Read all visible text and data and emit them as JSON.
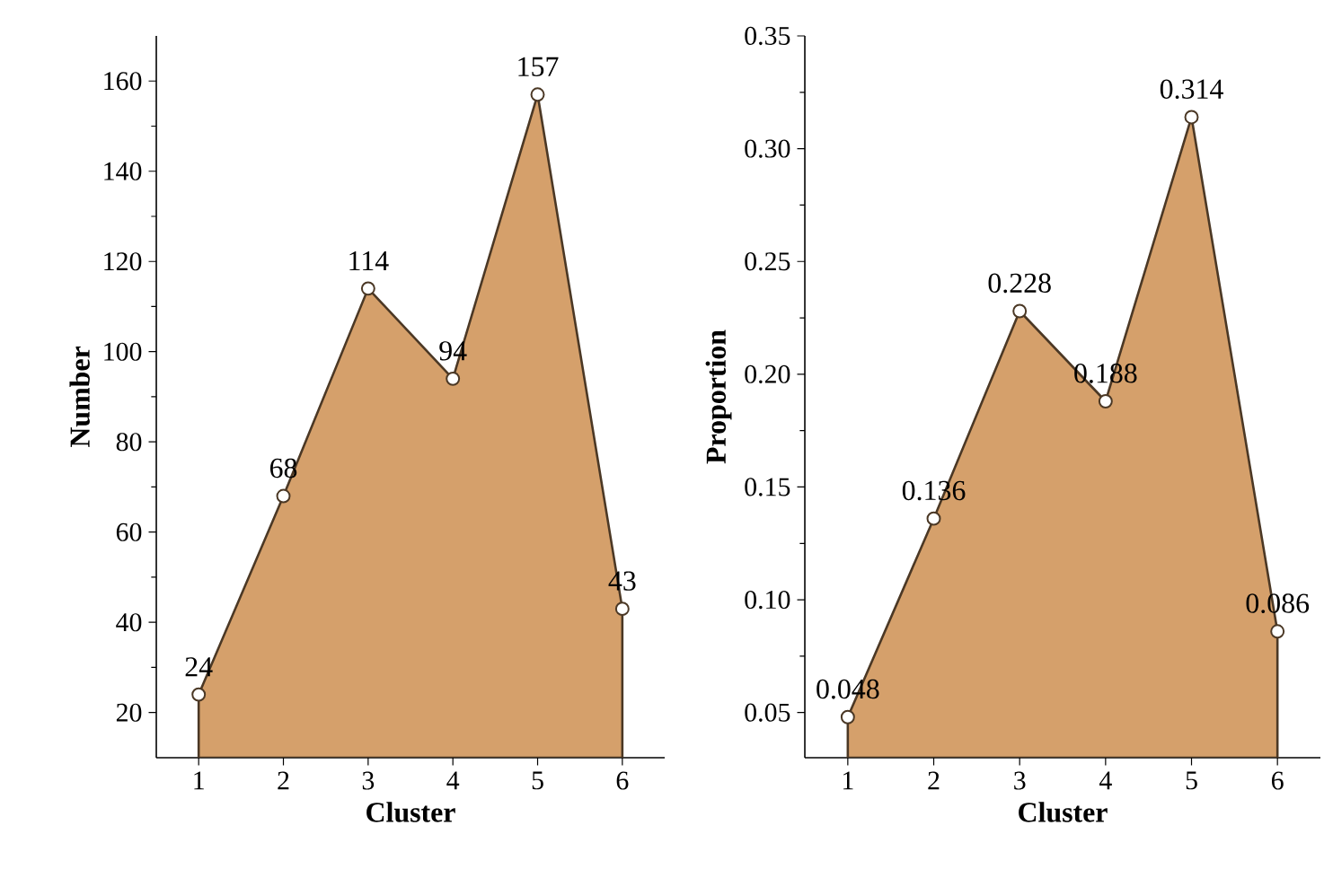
{
  "chart_data": [
    {
      "type": "area",
      "xlabel": "Cluster",
      "ylabel": "Number",
      "categories": [
        "1",
        "2",
        "3",
        "4",
        "5",
        "6"
      ],
      "series": [
        {
          "color": "#d5a06b",
          "values": [
            24,
            68,
            114,
            94,
            157,
            43
          ]
        }
      ],
      "ylim": [
        10,
        170
      ],
      "yticks": [
        20,
        40,
        60,
        80,
        100,
        120,
        140,
        160
      ],
      "data_labels": true,
      "marker": "circle",
      "grid": false
    },
    {
      "type": "area",
      "xlabel": "Cluster",
      "ylabel": "Proportion",
      "categories": [
        "1",
        "2",
        "3",
        "4",
        "5",
        "6"
      ],
      "series": [
        {
          "color": "#d5a06b",
          "values": [
            0.048,
            0.136,
            0.228,
            0.188,
            0.314,
            0.086
          ]
        }
      ],
      "ylim": [
        0.03,
        0.35
      ],
      "yticks": [
        0.05,
        {
          "value": 0.1,
          "label": "0.10"
        },
        0.15,
        {
          "value": 0.2,
          "label": "0.20"
        },
        0.25,
        {
          "value": 0.3,
          "label": "0.30"
        },
        0.35
      ],
      "data_labels": true,
      "marker": "circle",
      "grid": false
    }
  ]
}
